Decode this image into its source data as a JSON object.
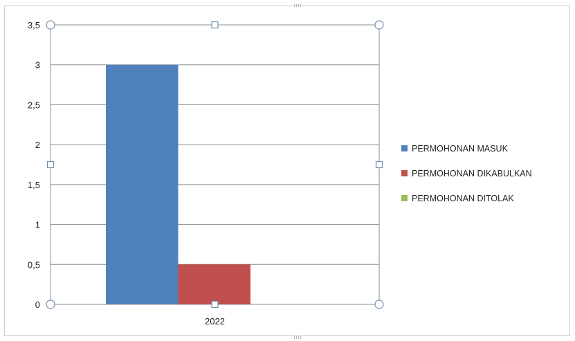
{
  "chart_data": {
    "type": "bar",
    "categories": [
      "2022"
    ],
    "series": [
      {
        "name": "PERMOHONAN MASUK",
        "values": [
          3
        ],
        "color": "#4f81bd"
      },
      {
        "name": "PERMOHONAN DIKABULKAN",
        "values": [
          0.5
        ],
        "color": "#c0504d"
      },
      {
        "name": "PERMOHONAN  DITOLAK",
        "values": [
          0
        ],
        "color": "#9bbb59"
      }
    ],
    "ylim": [
      0,
      3.5
    ],
    "yticks": [
      0,
      0.5,
      1,
      1.5,
      2,
      2.5,
      3,
      3.5
    ],
    "ytick_labels": [
      "0",
      "0,5",
      "1",
      "1,5",
      "2",
      "2,5",
      "3",
      "3,5"
    ],
    "grid": true,
    "legend_position": "right",
    "selected": true
  }
}
